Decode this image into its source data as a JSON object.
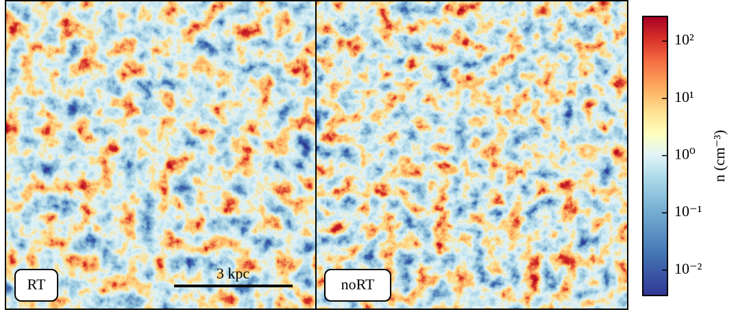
{
  "panels": [
    {
      "label": "RT"
    },
    {
      "label": "noRT"
    }
  ],
  "scale_bar": {
    "label": "3 kpc"
  },
  "colorbar": {
    "label": "n (cm⁻³)",
    "scale": "log",
    "lim": [
      0.0036,
      270
    ],
    "ticks": [
      {
        "value": 0.01,
        "label": "10⁻²"
      },
      {
        "value": 0.1,
        "label": "10⁻¹"
      },
      {
        "value": 1,
        "label": "10⁰"
      },
      {
        "value": 10,
        "label": "10¹"
      },
      {
        "value": 100,
        "label": "10²"
      }
    ]
  }
}
